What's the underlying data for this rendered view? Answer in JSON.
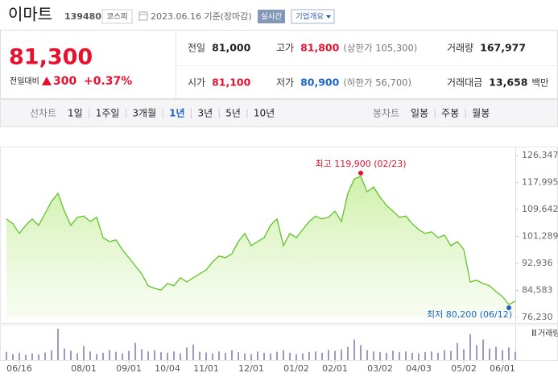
{
  "header": {
    "name": "이마트",
    "code": "139480",
    "market": "코스피",
    "date": "2023.06.16 기준(장마감)",
    "realtime": "실시간",
    "company": "기업개요"
  },
  "price": {
    "current": "81,300",
    "change_label": "전일대비",
    "change": "300",
    "change_pct": "+0.37%",
    "color": "#e8112d"
  },
  "stats": [
    {
      "label": "전일",
      "value": "81,000",
      "color": "#222222"
    },
    {
      "label": "고가",
      "value": "81,800",
      "note": "(상한가 105,300)",
      "color": "#e8112d"
    },
    {
      "label": "거래량",
      "value": "167,977",
      "color": "#222222"
    },
    {
      "label": "시가",
      "value": "81,100",
      "color": "#e8112d"
    },
    {
      "label": "저가",
      "value": "80,900",
      "note": "(하한가 56,700)",
      "color": "#1e64c8"
    },
    {
      "label": "거래대금",
      "value": "13,658",
      "note": "백만",
      "color": "#222222"
    }
  ],
  "periods": {
    "line_label": "선차트",
    "line": [
      "1일",
      "1주일",
      "3개월",
      "1년",
      "3년",
      "5년",
      "10년"
    ],
    "selected": "1년",
    "candle_label": "봉차트",
    "candle": [
      "일봉",
      "주봉",
      "월봉"
    ]
  },
  "chart_data": {
    "type": "line",
    "categories": [
      null,
      null,
      "06/16",
      null,
      null,
      null,
      null,
      null,
      null,
      null,
      null,
      null,
      "08/01",
      null,
      null,
      null,
      null,
      null,
      null,
      "09/01",
      null,
      null,
      null,
      null,
      null,
      "10/04",
      null,
      null,
      null,
      null,
      null,
      "11/01",
      null,
      null,
      null,
      null,
      null,
      null,
      "12/01",
      null,
      null,
      null,
      null,
      null,
      null,
      "01/02",
      null,
      null,
      null,
      null,
      null,
      "02/01",
      null,
      null,
      null,
      null,
      null,
      null,
      "03/02",
      null,
      null,
      null,
      null,
      null,
      "04/03",
      null,
      null,
      null,
      null,
      null,
      null,
      "05/02",
      null,
      null,
      null,
      null,
      null,
      "06/01",
      null,
      null
    ],
    "series": [
      {
        "color": "#62c22a",
        "values": [
          106700,
          105200,
          102200,
          104700,
          106700,
          104700,
          108400,
          112100,
          114600,
          109100,
          104700,
          107200,
          107600,
          105900,
          107200,
          100900,
          99700,
          100200,
          97200,
          94700,
          92200,
          89700,
          86000,
          85200,
          84700,
          86700,
          86000,
          88500,
          87200,
          88500,
          89700,
          90900,
          93400,
          95200,
          94700,
          95900,
          99700,
          102200,
          98400,
          99700,
          100900,
          104700,
          106700,
          98400,
          102200,
          100900,
          103400,
          105900,
          107600,
          106700,
          107200,
          109100,
          105900,
          114600,
          119100,
          119900,
          115100,
          116600,
          113400,
          110900,
          109100,
          107200,
          107600,
          105200,
          103400,
          102200,
          102700,
          100900,
          101700,
          98400,
          99700,
          97200,
          87200,
          87700,
          86700,
          86000,
          84200,
          82700,
          80200,
          81300
        ]
      },
      {
        "name": "거래량",
        "color": "#9c98c8",
        "axis": "y2",
        "values": [
          250000,
          180000,
          220000,
          160000,
          200000,
          170000,
          230000,
          300000,
          950000,
          350000,
          280000,
          200000,
          420000,
          260000,
          180000,
          220000,
          300000,
          250000,
          200000,
          280000,
          520000,
          330000,
          260000,
          300000,
          240000,
          220000,
          260000,
          200000,
          380000,
          470000,
          250000,
          230000,
          200000,
          260000,
          220000,
          300000,
          240000,
          200000,
          180000,
          260000,
          220000,
          200000,
          250000,
          300000,
          220000,
          180000,
          200000,
          240000,
          260000,
          220000,
          300000,
          280000,
          320000,
          400000,
          620000,
          450000,
          300000,
          260000,
          240000,
          220000,
          280000,
          240000,
          260000,
          220000,
          200000,
          240000,
          260000,
          220000,
          300000,
          280000,
          520000,
          330000,
          780000,
          450000,
          620000,
          350000,
          400000,
          300000,
          380000,
          250000
        ]
      }
    ],
    "ylim": [
      76230,
      126347
    ],
    "yticks": [
      {
        "value": 126347,
        "label": "126,347"
      },
      {
        "value": 117995,
        "label": "117,995"
      },
      {
        "value": 109642,
        "label": "109,642"
      },
      {
        "value": 101289,
        "label": "101,289"
      },
      {
        "value": 92936,
        "label": "92,936"
      },
      {
        "value": 84583,
        "label": "84,583"
      },
      {
        "value": 76230,
        "label": "76,230"
      }
    ],
    "y2lim": [
      0,
      1000000
    ],
    "annotations": [
      {
        "text": "최고 119,900 (02/23)",
        "at": "max",
        "color": "#e8112d"
      },
      {
        "text": "최저 80,200 (06/12)",
        "at": "min",
        "color": "#1e64c8"
      }
    ]
  }
}
